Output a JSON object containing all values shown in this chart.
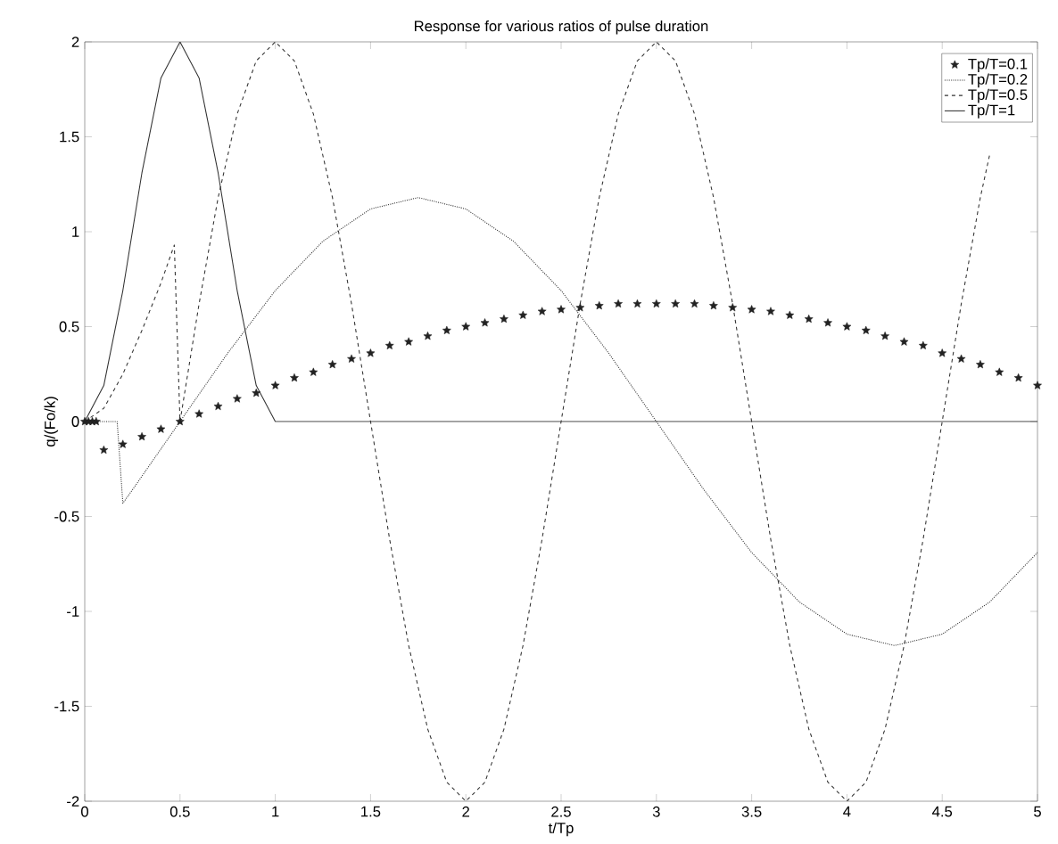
{
  "chart_data": {
    "type": "line",
    "title": "Response for various ratios of pulse duration",
    "xlabel": "t/Tp",
    "ylabel": "q/(Fo/k)",
    "xlim": [
      0,
      5
    ],
    "ylim": [
      -2,
      2
    ],
    "xticks": [
      0,
      0.5,
      1,
      1.5,
      2,
      2.5,
      3,
      3.5,
      4,
      4.5,
      5
    ],
    "yticks": [
      -2,
      -1.5,
      -1,
      -0.5,
      0,
      0.5,
      1,
      1.5,
      2
    ],
    "legend": "top right",
    "series": [
      {
        "name": "Tp/T=0.1",
        "type": "scatter",
        "marker": "star",
        "color": "#222222",
        "x": [
          0,
          0.02,
          0.04,
          0.06,
          0.1,
          0.2,
          0.3,
          0.4,
          0.5,
          0.6,
          0.7,
          0.8,
          0.9,
          1.0,
          1.1,
          1.2,
          1.3,
          1.4,
          1.5,
          1.6,
          1.7,
          1.8,
          1.9,
          2.0,
          2.1,
          2.2,
          2.3,
          2.4,
          2.5,
          2.6,
          2.7,
          2.8,
          2.9,
          3.0,
          3.1,
          3.2,
          3.3,
          3.4,
          3.5,
          3.6,
          3.7,
          3.8,
          3.9,
          4.0,
          4.1,
          4.2,
          4.3,
          4.4,
          4.5,
          4.6,
          4.7,
          4.8,
          4.9,
          5.0
        ],
        "values": [
          0,
          0,
          0,
          0,
          -0.15,
          -0.12,
          -0.08,
          -0.04,
          0,
          0.04,
          0.08,
          0.12,
          0.15,
          0.19,
          0.23,
          0.26,
          0.3,
          0.33,
          0.36,
          0.4,
          0.42,
          0.45,
          0.48,
          0.5,
          0.52,
          0.54,
          0.56,
          0.58,
          0.59,
          0.6,
          0.61,
          0.62,
          0.62,
          0.62,
          0.62,
          0.62,
          0.61,
          0.6,
          0.59,
          0.58,
          0.56,
          0.54,
          0.52,
          0.5,
          0.48,
          0.45,
          0.42,
          0.4,
          0.36,
          0.33,
          0.3,
          0.26,
          0.23,
          0.19
        ]
      },
      {
        "name": "Tp/T=0.2",
        "type": "line",
        "line_style": "dotted",
        "color": "#333333",
        "x": [
          0,
          0.17,
          0.2,
          0.25,
          0.5,
          0.75,
          1.0,
          1.25,
          1.5,
          1.75,
          2.0,
          2.25,
          2.5,
          2.75,
          3.0,
          3.25,
          3.5,
          3.75,
          4.0,
          4.25,
          4.5,
          4.75,
          5.0
        ],
        "values": [
          0,
          0,
          -0.43,
          -0.36,
          0,
          0.36,
          0.69,
          0.95,
          1.12,
          1.18,
          1.12,
          0.95,
          0.69,
          0.36,
          0,
          -0.36,
          -0.69,
          -0.95,
          -1.12,
          -1.18,
          -1.12,
          -0.95,
          -0.69
        ]
      },
      {
        "name": "Tp/T=0.5",
        "type": "line",
        "line_style": "dashed",
        "color": "#333333",
        "x": [
          0,
          0.1,
          0.2,
          0.3,
          0.4,
          0.47,
          0.5,
          0.6,
          0.7,
          0.8,
          0.9,
          1.0,
          1.1,
          1.2,
          1.3,
          1.4,
          1.5,
          1.6,
          1.7,
          1.8,
          1.9,
          2.0,
          2.1,
          2.2,
          2.3,
          2.4,
          2.5,
          2.6,
          2.7,
          2.8,
          2.9,
          3.0,
          3.1,
          3.2,
          3.3,
          3.4,
          3.5,
          3.6,
          3.7,
          3.8,
          3.9,
          4.0,
          4.1,
          4.2,
          4.3,
          4.4,
          4.5,
          4.6,
          4.7,
          4.75
        ],
        "values": [
          0,
          0.07,
          0.25,
          0.48,
          0.73,
          0.93,
          0,
          0.62,
          1.18,
          1.62,
          1.9,
          2,
          1.9,
          1.62,
          1.18,
          0.62,
          0,
          -0.62,
          -1.18,
          -1.62,
          -1.9,
          -2,
          -1.9,
          -1.62,
          -1.18,
          -0.62,
          0,
          0.62,
          1.18,
          1.62,
          1.9,
          2,
          1.9,
          1.62,
          1.18,
          0.62,
          0,
          -0.62,
          -1.18,
          -1.62,
          -1.9,
          -2,
          -1.9,
          -1.62,
          -1.18,
          -0.62,
          0,
          0.62,
          1.18,
          1.41
        ]
      },
      {
        "name": "Tp/T=1",
        "type": "line",
        "line_style": "solid",
        "color": "#333333",
        "x": [
          0,
          0.1,
          0.2,
          0.3,
          0.4,
          0.5,
          0.6,
          0.7,
          0.8,
          0.9,
          1.0,
          5.0
        ],
        "values": [
          0,
          0.19,
          0.69,
          1.31,
          1.81,
          2,
          1.81,
          1.31,
          0.69,
          0.19,
          0,
          0
        ]
      }
    ]
  }
}
